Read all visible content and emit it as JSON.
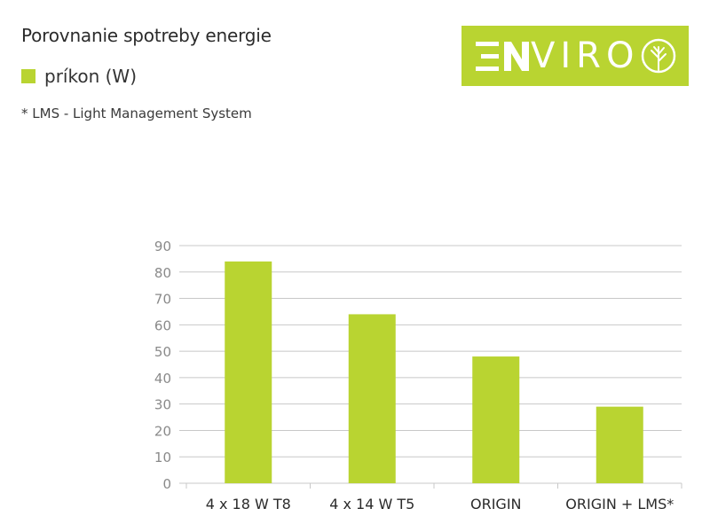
{
  "header": {
    "title": "Porovnanie spotreby energie",
    "legend_label": "príkon (W)",
    "note": "* LMS - Light Management System"
  },
  "logo": {
    "text": "VIRO",
    "brand": "ENVIRO"
  },
  "colors": {
    "accent": "#b9d431",
    "grid": "#c8c8c8",
    "axis_text": "#8a8a8a",
    "category_text": "#2b2b2b"
  },
  "chart_data": {
    "type": "bar",
    "categories": [
      "4 x 18 W T8",
      "4 x 14 W T5",
      "ORIGIN",
      "ORIGIN + LMS*"
    ],
    "series": [
      {
        "name": "príkon (W)",
        "values": [
          84,
          64,
          48,
          29
        ]
      }
    ],
    "y_ticks": [
      0,
      10,
      20,
      30,
      40,
      50,
      60,
      70,
      80,
      90
    ],
    "ylim": [
      0,
      90
    ],
    "grid": true,
    "legend_position": "top-left"
  }
}
